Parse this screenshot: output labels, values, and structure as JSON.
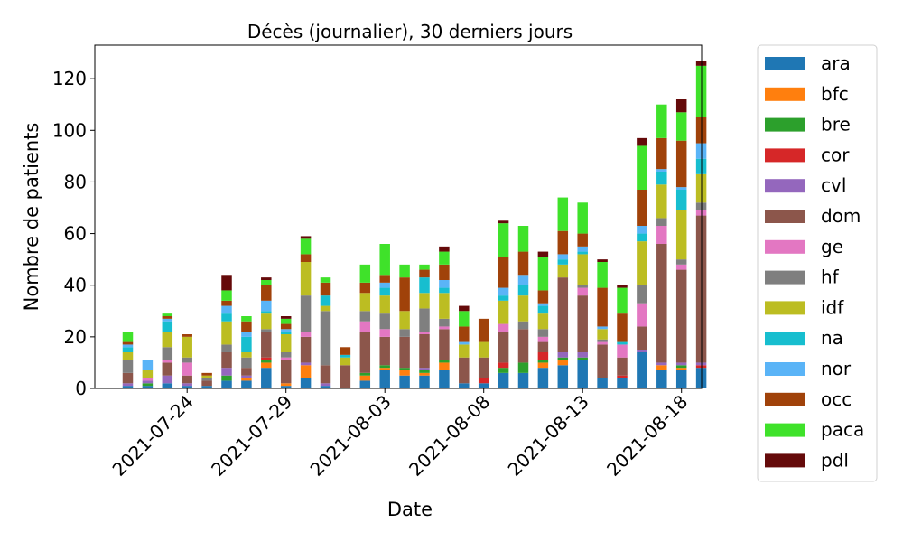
{
  "chart_data": {
    "type": "bar",
    "stacked": true,
    "title": "Décès (journalier), 30 derniers jours",
    "xlabel": "Date",
    "ylabel": "Nombre de patients",
    "ylim": [
      0,
      133
    ],
    "yticks": [
      0,
      20,
      40,
      60,
      80,
      100,
      120
    ],
    "categories": [
      "2021-07-21",
      "2021-07-22",
      "2021-07-23",
      "2021-07-24",
      "2021-07-25",
      "2021-07-26",
      "2021-07-27",
      "2021-07-28",
      "2021-07-29",
      "2021-07-30",
      "2021-07-31",
      "2021-08-01",
      "2021-08-02",
      "2021-08-03",
      "2021-08-04",
      "2021-08-05",
      "2021-08-06",
      "2021-08-07",
      "2021-08-08",
      "2021-08-09",
      "2021-08-10",
      "2021-08-11",
      "2021-08-12",
      "2021-08-13",
      "2021-08-14",
      "2021-08-15",
      "2021-08-16",
      "2021-08-17",
      "2021-08-18",
      "2021-08-19"
    ],
    "xtick_labels": [
      "2021-07-24",
      "2021-07-29",
      "2021-08-03",
      "2021-08-08",
      "2021-08-13",
      "2021-08-18"
    ],
    "legend_position": "outside-right",
    "grid": false,
    "series": [
      {
        "name": "ara",
        "color": "#1f77b4",
        "values": [
          1,
          1,
          2,
          1,
          1,
          3,
          3,
          8,
          1,
          4,
          1,
          0,
          3,
          7,
          5,
          5,
          7,
          2,
          2,
          6,
          6,
          8,
          9,
          11,
          4,
          4,
          14,
          7,
          7,
          8
        ]
      },
      {
        "name": "bfc",
        "color": "#ff7f0e",
        "values": [
          0,
          0,
          0,
          0,
          0,
          0,
          1,
          2,
          1,
          5,
          0,
          0,
          2,
          1,
          2,
          1,
          3,
          0,
          0,
          0,
          0,
          2,
          2,
          0,
          0,
          0,
          0,
          2,
          1,
          0
        ]
      },
      {
        "name": "bre",
        "color": "#2ca02c",
        "values": [
          0,
          1,
          0,
          0,
          0,
          2,
          0,
          1,
          0,
          0,
          0,
          0,
          1,
          1,
          1,
          1,
          1,
          0,
          0,
          2,
          4,
          1,
          1,
          1,
          0,
          0,
          0,
          0,
          1,
          0
        ]
      },
      {
        "name": "cor",
        "color": "#d62728",
        "values": [
          0,
          0,
          0,
          0,
          0,
          0,
          0,
          1,
          0,
          0,
          0,
          0,
          0,
          0,
          0,
          0,
          0,
          0,
          2,
          2,
          0,
          3,
          0,
          0,
          0,
          1,
          0,
          0,
          0,
          1
        ]
      },
      {
        "name": "cvl",
        "color": "#9467bd",
        "values": [
          1,
          1,
          3,
          1,
          0,
          3,
          1,
          0,
          0,
          1,
          1,
          0,
          0,
          0,
          0,
          1,
          0,
          0,
          0,
          0,
          0,
          0,
          2,
          2,
          0,
          0,
          1,
          1,
          1,
          1
        ]
      },
      {
        "name": "dom",
        "color": "#8c564b",
        "values": [
          4,
          0,
          5,
          3,
          2,
          6,
          3,
          10,
          9,
          10,
          7,
          9,
          16,
          11,
          12,
          13,
          12,
          10,
          8,
          12,
          13,
          4,
          29,
          22,
          13,
          7,
          9,
          46,
          36,
          57
        ]
      },
      {
        "name": "ge",
        "color": "#e377c2",
        "values": [
          0,
          1,
          1,
          5,
          0,
          0,
          0,
          0,
          1,
          2,
          0,
          0,
          4,
          3,
          0,
          1,
          1,
          0,
          0,
          3,
          0,
          2,
          0,
          3,
          1,
          5,
          9,
          7,
          2,
          2
        ]
      },
      {
        "name": "hf",
        "color": "#7f7f7f",
        "values": [
          5,
          0,
          5,
          2,
          1,
          3,
          4,
          1,
          2,
          14,
          21,
          0,
          4,
          6,
          3,
          9,
          3,
          0,
          0,
          0,
          3,
          3,
          0,
          1,
          1,
          0,
          7,
          3,
          2,
          3
        ]
      },
      {
        "name": "idf",
        "color": "#bcbd22",
        "values": [
          3,
          3,
          6,
          8,
          1,
          9,
          2,
          6,
          7,
          13,
          2,
          3,
          7,
          7,
          7,
          6,
          10,
          5,
          6,
          9,
          10,
          6,
          5,
          12,
          4,
          0,
          17,
          13,
          19,
          11
        ]
      },
      {
        "name": "na",
        "color": "#17becf",
        "values": [
          2,
          0,
          4,
          0,
          0,
          3,
          6,
          1,
          1,
          0,
          4,
          1,
          0,
          3,
          0,
          6,
          2,
          0,
          0,
          2,
          4,
          3,
          2,
          1,
          0,
          1,
          3,
          5,
          8,
          6
        ]
      },
      {
        "name": "nor",
        "color": "#5ab4f7",
        "values": [
          1,
          4,
          1,
          0,
          0,
          3,
          2,
          4,
          1,
          0,
          0,
          0,
          0,
          2,
          0,
          0,
          3,
          1,
          0,
          3,
          4,
          1,
          2,
          2,
          1,
          0,
          3,
          1,
          1,
          6
        ]
      },
      {
        "name": "occ",
        "color": "#a0420a",
        "values": [
          1,
          0,
          1,
          1,
          1,
          2,
          4,
          6,
          2,
          3,
          5,
          3,
          4,
          3,
          13,
          3,
          6,
          6,
          9,
          12,
          9,
          5,
          9,
          5,
          15,
          11,
          14,
          12,
          18,
          10
        ]
      },
      {
        "name": "paca",
        "color": "#3fe22a",
        "values": [
          4,
          0,
          1,
          0,
          0,
          4,
          2,
          2,
          2,
          6,
          2,
          0,
          7,
          12,
          5,
          2,
          5,
          6,
          0,
          13,
          10,
          13,
          13,
          12,
          10,
          10,
          17,
          13,
          11,
          20
        ]
      },
      {
        "name": "pdl",
        "color": "#650a0a",
        "values": [
          0,
          0,
          0,
          0,
          0,
          6,
          0,
          1,
          1,
          1,
          0,
          0,
          0,
          0,
          0,
          0,
          2,
          2,
          0,
          1,
          0,
          2,
          0,
          0,
          1,
          1,
          3,
          0,
          5,
          2
        ]
      }
    ]
  }
}
